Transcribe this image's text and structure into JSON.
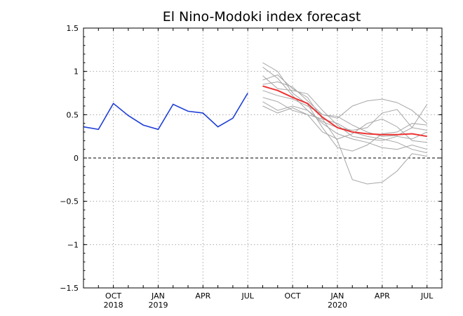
{
  "chart_data": {
    "type": "line",
    "title": "El Nino-Modoki index forecast",
    "xlabel": "",
    "ylabel": "",
    "xlim": [
      "2018-08",
      "2020-08"
    ],
    "ylim": [
      -1.5,
      1.5
    ],
    "y_ticks": [
      {
        "value": 1.5,
        "label": "1.5"
      },
      {
        "value": 1,
        "label": "1"
      },
      {
        "value": 0.5,
        "label": "0.5"
      },
      {
        "value": 0,
        "label": "0"
      },
      {
        "value": -0.5,
        "label": "−0.5"
      },
      {
        "value": -1,
        "label": "−1"
      },
      {
        "value": -1.5,
        "label": "−1.5"
      }
    ],
    "x_ticks": [
      {
        "date": "2018-10",
        "label": "OCT",
        "year": "2018"
      },
      {
        "date": "2019-01",
        "label": "JAN",
        "year": "2019"
      },
      {
        "date": "2019-04",
        "label": "APR",
        "year": ""
      },
      {
        "date": "2019-07",
        "label": "JUL",
        "year": ""
      },
      {
        "date": "2019-10",
        "label": "OCT",
        "year": ""
      },
      {
        "date": "2020-01",
        "label": "JAN",
        "year": "2020"
      },
      {
        "date": "2020-04",
        "label": "APR",
        "year": ""
      },
      {
        "date": "2020-07",
        "label": "JUL",
        "year": ""
      }
    ],
    "grid": true,
    "reference_line": 0,
    "colors": {
      "observed": "#1f3fd6",
      "ensemble": "#a6a6a6",
      "mean": "#ee3333",
      "grid": "#aaaaaa"
    },
    "observed": {
      "x": [
        "2018-08",
        "2018-09",
        "2018-10",
        "2018-11",
        "2018-12",
        "2019-01",
        "2019-02",
        "2019-03",
        "2019-04",
        "2019-05",
        "2019-06",
        "2019-07"
      ],
      "values": [
        0.36,
        0.33,
        0.63,
        0.49,
        0.38,
        0.33,
        0.62,
        0.54,
        0.52,
        0.36,
        0.46,
        0.75
      ]
    },
    "ensemble_mean": {
      "x": [
        "2019-08",
        "2019-09",
        "2019-10",
        "2019-11",
        "2019-12",
        "2020-01",
        "2020-02",
        "2020-03",
        "2020-04",
        "2020-05",
        "2020-06",
        "2020-07"
      ],
      "values": [
        0.83,
        0.78,
        0.7,
        0.63,
        0.47,
        0.35,
        0.3,
        0.28,
        0.27,
        0.27,
        0.28,
        0.25
      ]
    },
    "ensemble_members": {
      "x": [
        "2019-08",
        "2019-09",
        "2019-10",
        "2019-11",
        "2019-12",
        "2020-01",
        "2020-02",
        "2020-03",
        "2020-04",
        "2020-05",
        "2020-06",
        "2020-07"
      ],
      "members": [
        [
          0.78,
          0.72,
          0.68,
          0.6,
          0.5,
          0.46,
          0.6,
          0.66,
          0.68,
          0.64,
          0.55,
          0.4
        ],
        [
          0.9,
          0.96,
          0.8,
          0.7,
          0.45,
          0.2,
          -0.25,
          -0.3,
          -0.28,
          -0.15,
          0.05,
          0.02
        ],
        [
          1.05,
          0.92,
          0.72,
          0.55,
          0.42,
          0.35,
          0.32,
          0.35,
          0.52,
          0.56,
          0.35,
          0.62
        ],
        [
          0.65,
          0.55,
          0.6,
          0.55,
          0.4,
          0.28,
          0.22,
          0.18,
          0.12,
          0.1,
          0.15,
          0.1
        ],
        [
          0.95,
          0.8,
          0.78,
          0.74,
          0.55,
          0.38,
          0.25,
          0.22,
          0.2,
          0.25,
          0.22,
          0.3
        ],
        [
          1.1,
          1.0,
          0.75,
          0.62,
          0.35,
          0.12,
          0.08,
          0.15,
          0.28,
          0.3,
          0.4,
          0.38
        ],
        [
          0.7,
          0.65,
          0.55,
          0.5,
          0.45,
          0.4,
          0.3,
          0.25,
          0.22,
          0.18,
          0.1,
          0.06
        ],
        [
          0.85,
          0.88,
          0.82,
          0.66,
          0.5,
          0.48,
          0.38,
          0.3,
          0.25,
          0.26,
          0.35,
          0.32
        ],
        [
          0.6,
          0.52,
          0.58,
          0.5,
          0.3,
          0.22,
          0.28,
          0.4,
          0.45,
          0.36,
          0.2,
          0.18
        ]
      ]
    }
  }
}
